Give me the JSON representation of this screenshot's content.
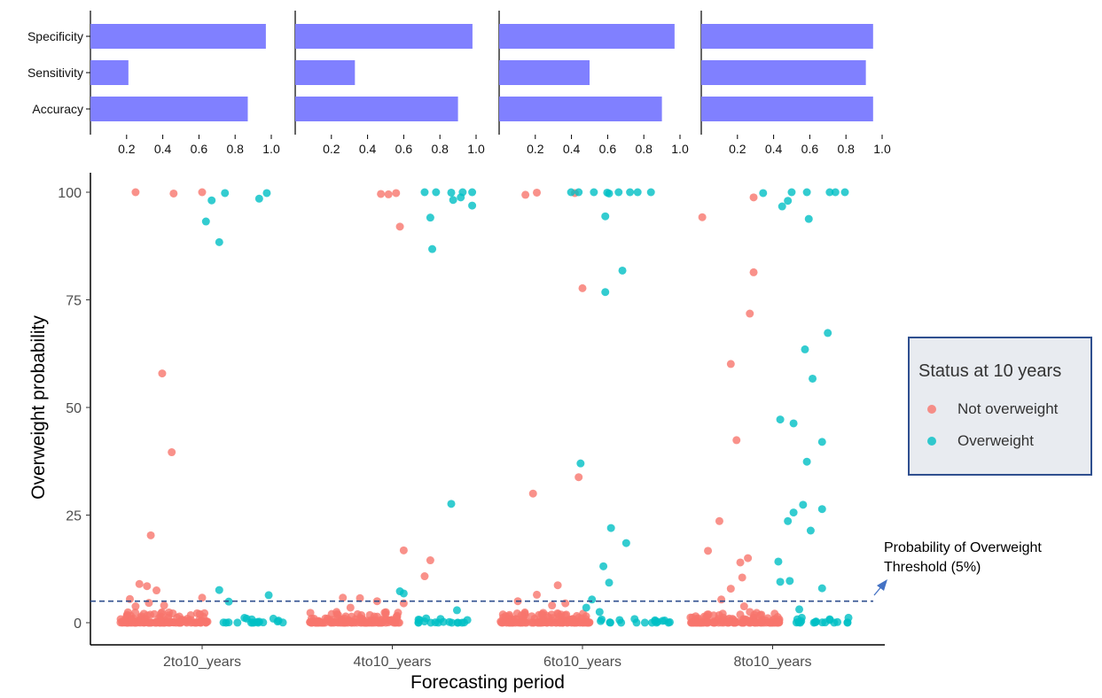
{
  "bar_panels": {
    "metrics": [
      "Specificity",
      "Sensitivity",
      "Accuracy"
    ],
    "ticks": [
      "0.2",
      "0.4",
      "0.6",
      "0.8",
      "1.0"
    ],
    "color": "#8080ff",
    "panels": [
      {
        "values": [
          0.97,
          0.21,
          0.87
        ]
      },
      {
        "values": [
          0.98,
          0.33,
          0.9
        ]
      },
      {
        "values": [
          0.97,
          0.5,
          0.9
        ]
      },
      {
        "values": [
          0.95,
          0.91,
          0.95
        ]
      }
    ]
  },
  "chart_data": {
    "type": "scatter",
    "xlabel": "Forecasting period",
    "ylabel": "Overweight probability",
    "categories": [
      "2to10_years",
      "4to10_years",
      "6to10_years",
      "8to10_years"
    ],
    "yticks": [
      "0",
      "25",
      "50",
      "75",
      "100"
    ],
    "ylim": [
      -5,
      105
    ],
    "threshold": 5,
    "threshold_label_line1": "Probability of Overweight",
    "threshold_label_line2": "Threshold (5%)",
    "colors": {
      "not_overweight": "#f8766d",
      "overweight": "#00bfc4",
      "threshold": "#2f4f8f"
    },
    "legend": {
      "title": "Status at 10 years",
      "items": [
        {
          "label": "Not overweight",
          "color": "#f8766d"
        },
        {
          "label": "Overweight",
          "color": "#00bfc4"
        }
      ]
    },
    "series": [
      {
        "name": "Not overweight",
        "points": [
          [
            -0.35,
            100
          ],
          [
            -0.15,
            99.7
          ],
          [
            0.0,
            100
          ],
          [
            -0.21,
            57.9
          ],
          [
            -0.16,
            39.6
          ],
          [
            -0.27,
            20.3
          ],
          [
            -0.38,
            5.5
          ],
          [
            -0.33,
            9
          ],
          [
            -0.29,
            8.5
          ],
          [
            -0.24,
            7.5
          ],
          [
            0.0,
            5.8
          ],
          [
            -0.2,
            4
          ],
          [
            -0.28,
            4.6
          ],
          [
            -0.35,
            3.8
          ],
          [
            0.94,
            99.6
          ],
          [
            0.98,
            99.5
          ],
          [
            1.02,
            99.8
          ],
          [
            1.04,
            92
          ],
          [
            1.06,
            16.8
          ],
          [
            1.2,
            14.5
          ],
          [
            1.17,
            10.8
          ],
          [
            0.74,
            5.8
          ],
          [
            0.83,
            5.7
          ],
          [
            0.92,
            5
          ],
          [
            1.06,
            4.5
          ],
          [
            0.78,
            3.5
          ],
          [
            1.7,
            99.4
          ],
          [
            1.76,
            99.9
          ],
          [
            1.96,
            99.8
          ],
          [
            2.0,
            77.7
          ],
          [
            1.98,
            33.8
          ],
          [
            1.74,
            30
          ],
          [
            1.87,
            8.7
          ],
          [
            1.66,
            5
          ],
          [
            1.76,
            6.5
          ],
          [
            1.91,
            4.5
          ],
          [
            1.84,
            4
          ],
          [
            2.63,
            94.2
          ],
          [
            2.9,
            98.8
          ],
          [
            2.9,
            81.4
          ],
          [
            2.88,
            71.8
          ],
          [
            2.78,
            60.1
          ],
          [
            2.81,
            42.4
          ],
          [
            2.66,
            16.7
          ],
          [
            2.72,
            23.6
          ],
          [
            2.78,
            7.9
          ],
          [
            2.83,
            14
          ],
          [
            2.87,
            15
          ],
          [
            2.84,
            10.5
          ],
          [
            2.73,
            5.4
          ],
          [
            2.85,
            3.8
          ],
          [
            2.88,
            2.5
          ]
        ]
      },
      {
        "name": "Overweight",
        "points": [
          [
            0.02,
            93.2
          ],
          [
            0.05,
            98.1
          ],
          [
            0.09,
            88.4
          ],
          [
            0.12,
            99.8
          ],
          [
            0.3,
            98.5
          ],
          [
            0.34,
            99.8
          ],
          [
            0.09,
            7.6
          ],
          [
            0.14,
            4.9
          ],
          [
            0.35,
            6.4
          ],
          [
            1.17,
            100
          ],
          [
            1.2,
            94.1
          ],
          [
            1.21,
            86.8
          ],
          [
            1.23,
            100
          ],
          [
            1.31,
            99.9
          ],
          [
            1.37,
            100
          ],
          [
            1.42,
            100
          ],
          [
            1.32,
            98.2
          ],
          [
            1.36,
            98.8
          ],
          [
            1.42,
            96.9
          ],
          [
            1.31,
            27.6
          ],
          [
            1.34,
            2.9
          ],
          [
            1.04,
            7.3
          ],
          [
            1.06,
            6.8
          ],
          [
            1.94,
            100
          ],
          [
            1.98,
            100
          ],
          [
            2.06,
            100
          ],
          [
            2.13,
            99.9
          ],
          [
            2.14,
            99.7
          ],
          [
            2.19,
            100
          ],
          [
            2.29,
            100
          ],
          [
            2.36,
            100
          ],
          [
            2.25,
            100
          ],
          [
            2.12,
            94.4
          ],
          [
            2.21,
            81.8
          ],
          [
            2.12,
            76.8
          ],
          [
            1.99,
            37
          ],
          [
            2.15,
            22
          ],
          [
            2.23,
            18.5
          ],
          [
            2.11,
            13.1
          ],
          [
            2.14,
            9.3
          ],
          [
            2.05,
            5.4
          ],
          [
            2.02,
            3.5
          ],
          [
            2.09,
            2.5
          ],
          [
            2.95,
            99.8
          ],
          [
            3.1,
            100
          ],
          [
            3.18,
            100
          ],
          [
            3.3,
            100
          ],
          [
            3.33,
            100
          ],
          [
            3.38,
            100
          ],
          [
            3.08,
            98
          ],
          [
            3.05,
            96.7
          ],
          [
            3.19,
            93.8
          ],
          [
            3.17,
            63.5
          ],
          [
            3.21,
            56.7
          ],
          [
            3.18,
            37.4
          ],
          [
            3.29,
            67.3
          ],
          [
            3.26,
            42
          ],
          [
            3.04,
            47.2
          ],
          [
            3.11,
            46.3
          ],
          [
            3.11,
            25.6
          ],
          [
            3.16,
            27.4
          ],
          [
            3.2,
            21.4
          ],
          [
            3.26,
            26.4
          ],
          [
            3.08,
            23.6
          ],
          [
            3.03,
            14.2
          ],
          [
            3.04,
            9.5
          ],
          [
            3.09,
            9.7
          ],
          [
            3.26,
            8
          ],
          [
            3.14,
            3.1
          ],
          [
            3.13,
            0.8
          ],
          [
            3.3,
            0.8
          ]
        ]
      }
    ]
  }
}
